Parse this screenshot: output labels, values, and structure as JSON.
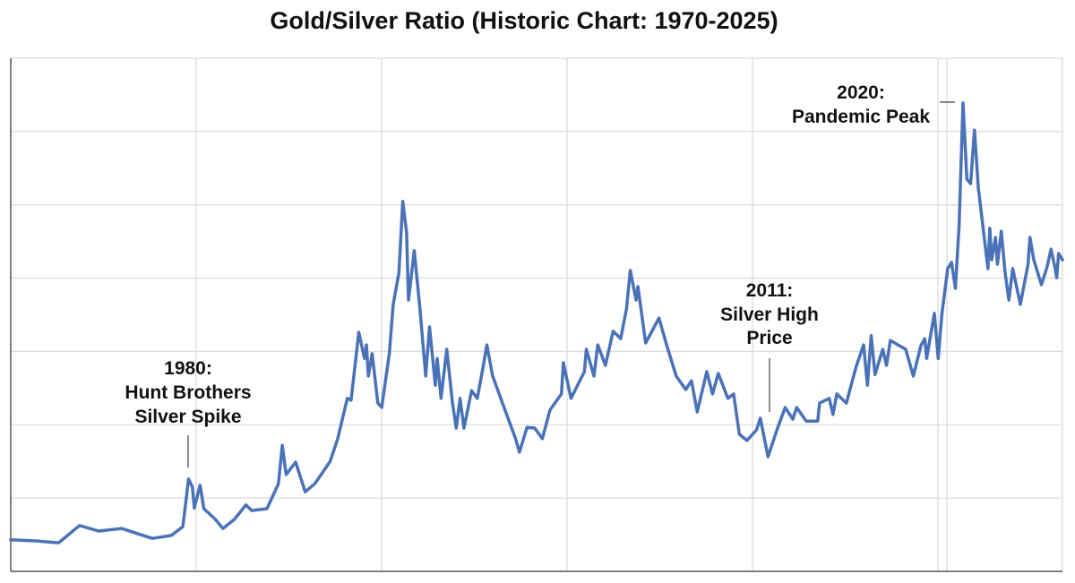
{
  "chart_data": {
    "type": "line",
    "title": "Gold/Silver Ratio (Historic Chart: 1970-2025)",
    "xlabel": "",
    "ylabel": "",
    "xlim": [
      1970,
      2025
    ],
    "ylim": [
      0,
      140
    ],
    "grid": true,
    "line_color": "#4a72b8",
    "series": [
      {
        "x": [
          1970.0,
          1971.3,
          1972.5,
          1973.6,
          1974.6,
          1975.8,
          1976.8,
          1977.4,
          1978.4,
          1979.0,
          1979.3,
          1979.5,
          1979.6,
          1979.9,
          1980.1,
          1980.7,
          1981.1,
          1981.7,
          1982.3,
          1982.6,
          1983.4,
          1984.0,
          1984.2,
          1984.4,
          1984.9,
          1985.4,
          1985.9,
          1986.7,
          1987.1,
          1987.6,
          1987.8,
          1988.2,
          1988.5,
          1988.6,
          1988.7,
          1988.9,
          1989.2,
          1989.4,
          1989.8,
          1990.0,
          1990.3,
          1990.5,
          1990.7,
          1990.8,
          1991.1,
          1991.4,
          1991.7,
          1991.9,
          1992.2,
          1992.3,
          1992.5,
          1992.8,
          1993.1,
          1993.3,
          1993.5,
          1993.7,
          1994.1,
          1994.4,
          1994.7,
          1994.9,
          1995.2,
          1995.8,
          1996.4,
          1996.6,
          1997.0,
          1997.4,
          1997.8,
          1998.2,
          1998.8,
          1998.9,
          1999.3,
          2000.0,
          2000.1,
          2000.5,
          2000.7,
          2001.1,
          2001.5,
          2001.9,
          2002.2,
          2002.4,
          2002.7,
          2002.8,
          2003.2,
          2003.9,
          2004.3,
          2004.8,
          2005.3,
          2005.6,
          2005.9,
          2006.4,
          2006.7,
          2007.0,
          2007.5,
          2007.8,
          2008.1,
          2008.5,
          2009.0,
          2009.2,
          2009.6,
          2010.1,
          2010.5,
          2010.9,
          2011.1,
          2011.6,
          2012.2,
          2012.3,
          2012.8,
          2013.0,
          2013.2,
          2013.7,
          2014.2,
          2014.6,
          2014.8,
          2015.0,
          2015.2,
          2015.6,
          2015.8,
          2016.0,
          2016.4,
          2016.8,
          2017.2,
          2017.6,
          2017.8,
          2017.9,
          2018.3,
          2018.5,
          2018.7,
          2019.0,
          2019.2,
          2019.4,
          2019.6,
          2019.7,
          2019.8,
          2020.0,
          2020.2,
          2020.4,
          2020.6,
          2020.8,
          2021.1,
          2021.2,
          2021.3,
          2021.5,
          2021.6,
          2021.8,
          2022.0,
          2022.2,
          2022.4,
          2022.8,
          2023.2,
          2023.3,
          2023.5,
          2023.9,
          2024.2,
          2024.4,
          2024.6,
          2024.7,
          2024.8,
          2025.0
        ],
        "y": [
          8.6,
          8.3,
          7.8,
          12.5,
          11.0,
          11.7,
          10.0,
          9.0,
          9.8,
          12.2,
          25.2,
          23.0,
          17.3,
          23.5,
          17.1,
          14.2,
          11.7,
          14.2,
          18.1,
          16.6,
          17.1,
          23.9,
          34.4,
          26.4,
          29.8,
          21.7,
          23.9,
          30.0,
          36.2,
          47.2,
          46.7,
          65.2,
          58.1,
          61.8,
          53.3,
          59.4,
          45.9,
          44.7,
          59.4,
          72.8,
          81.4,
          100.9,
          92.3,
          74.0,
          87.5,
          71.6,
          53.3,
          66.7,
          50.8,
          58.1,
          47.2,
          60.6,
          45.9,
          39.1,
          47.2,
          39.1,
          49.3,
          47.2,
          55.7,
          61.8,
          53.3,
          44.7,
          36.2,
          32.5,
          39.3,
          39.1,
          36.2,
          44.0,
          48.4,
          56.9,
          47.2,
          54.5,
          60.6,
          53.3,
          61.8,
          56.2,
          65.5,
          63.5,
          71.6,
          82.1,
          74.0,
          77.7,
          62.3,
          69.1,
          61.8,
          53.3,
          49.6,
          52.0,
          43.5,
          54.5,
          48.4,
          54.0,
          47.2,
          48.4,
          37.4,
          35.7,
          38.6,
          41.8,
          31.3,
          39.1,
          44.7,
          41.5,
          44.7,
          41.0,
          41.0,
          45.9,
          47.2,
          42.8,
          48.4,
          45.9,
          55.7,
          61.8,
          50.8,
          64.3,
          53.7,
          60.6,
          56.2,
          63.0,
          61.8,
          60.6,
          53.3,
          61.6,
          63.5,
          58.1,
          70.4,
          58.1,
          70.4,
          82.6,
          84.3,
          77.2,
          94.8,
          111.9,
          127.8,
          107.0,
          105.8,
          120.4,
          104.6,
          96.0,
          82.6,
          93.6,
          85.0,
          91.1,
          83.8,
          92.8,
          81.4,
          74.0,
          82.6,
          72.8,
          83.8,
          91.1,
          85.0,
          78.2,
          83.1,
          87.9,
          83.1,
          80.1,
          86.7,
          85.0
        ]
      }
    ],
    "annotations": [
      {
        "lines": [
          "1980:",
          "Hunt Brothers",
          "Silver Spike"
        ]
      },
      {
        "lines": [
          "2011:",
          "Silver High",
          "Price"
        ]
      },
      {
        "lines": [
          "2020:",
          "Pandemic Peak"
        ]
      }
    ]
  }
}
